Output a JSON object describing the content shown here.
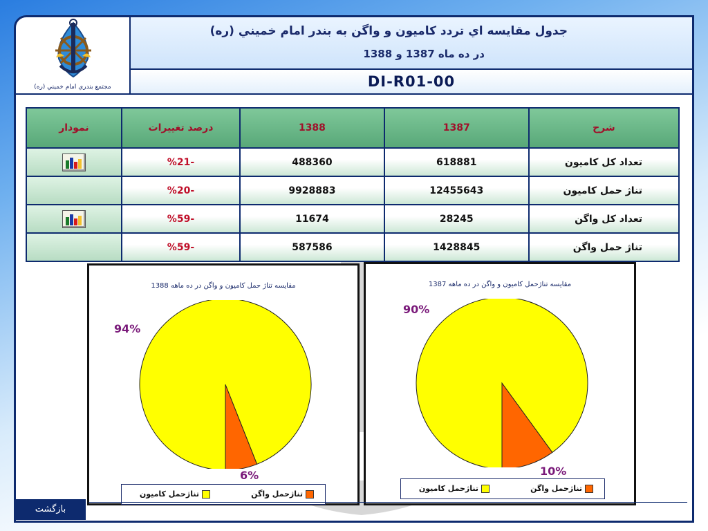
{
  "header": {
    "logo_caption": "مجتمع بندري امام خميني (ره)",
    "title_line1": "جدول مقايسه اي تردد كاميون و واگن به بندر امام خميني (ره)",
    "title_line2": "در ده ماه 1387 و 1388",
    "doc_code": "DI-R01-00"
  },
  "table": {
    "headers": {
      "desc": "شرح",
      "y1387": "1387",
      "y1388": "1388",
      "change": "درصد تغييرات",
      "chart": "نمودار"
    },
    "rows": [
      {
        "desc": "تعداد كل كاميون",
        "y1387": "618881",
        "y1388": "488360",
        "change": "-%21",
        "has_chart": true
      },
      {
        "desc": "تناژ حمل كاميون",
        "y1387": "12455643",
        "y1388": "9928883",
        "change": "-%20",
        "has_chart": false
      },
      {
        "desc": "تعداد كل واگن",
        "y1387": "28245",
        "y1388": "11674",
        "change": "-%59",
        "has_chart": true
      },
      {
        "desc": "تناژ حمل واگن",
        "y1387": "1428845",
        "y1388": "587586",
        "change": "-%59",
        "has_chart": false
      }
    ]
  },
  "colors": {
    "navy": "#0d2a6e",
    "header_green": "#6fbf8c",
    "truck_yellow": "#ffff00",
    "wagon_orange": "#ff6600",
    "label_purple": "#7a1a7a"
  },
  "chart_data": [
    {
      "type": "pie",
      "title": "مقايسه تناژ حمل كاميون و واگن در ده ماهه 1388",
      "categories": [
        "تناژحمل كاميون",
        "تناژحمل واگن"
      ],
      "values": [
        94,
        6
      ],
      "data_labels": [
        "94%",
        "6%"
      ],
      "colors": [
        "#ffff00",
        "#ff6600"
      ],
      "legend": "bottom"
    },
    {
      "type": "pie",
      "title": "مقايسه تناژحمل كاميون و واگن در ده ماهه 1387",
      "categories": [
        "تناژحمل كاميون",
        "تناژحمل واگن"
      ],
      "values": [
        90,
        10
      ],
      "data_labels": [
        "90%",
        "10%"
      ],
      "colors": [
        "#ffff00",
        "#ff6600"
      ],
      "legend": "bottom"
    }
  ],
  "footer": {
    "back_label": "بازگشت"
  },
  "icons": {
    "logo": "anchor-ship-wheel-logo",
    "row_chart": "bar-chart-icon"
  }
}
